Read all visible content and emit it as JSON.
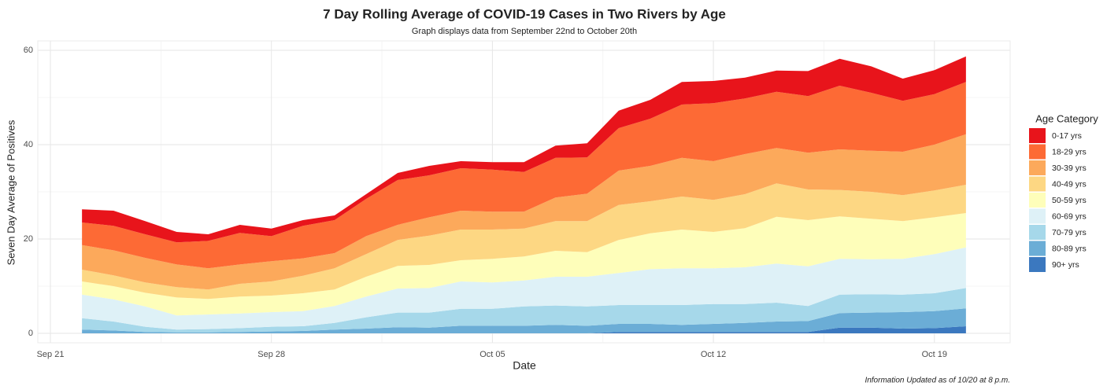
{
  "chart_data": {
    "type": "stacked-area",
    "title": "7 Day Rolling Average of COVID-19 Cases in Two Rivers by Age",
    "subtitle": "Graph displays data from September 22nd to October 20th",
    "x_label": "Date",
    "y_label": "Seven Day Average of Positives",
    "legend_title": "Age Category",
    "note": "Information Updated as of 10/20 at 8 p.m.",
    "x": [
      "Sep 22",
      "Sep 23",
      "Sep 24",
      "Sep 25",
      "Sep 26",
      "Sep 27",
      "Sep 28",
      "Sep 29",
      "Sep 30",
      "Oct 01",
      "Oct 02",
      "Oct 03",
      "Oct 04",
      "Oct 05",
      "Oct 06",
      "Oct 07",
      "Oct 08",
      "Oct 09",
      "Oct 10",
      "Oct 11",
      "Oct 12",
      "Oct 13",
      "Oct 14",
      "Oct 15",
      "Oct 16",
      "Oct 17",
      "Oct 18",
      "Oct 19",
      "Oct 20"
    ],
    "xlim": [
      "Sep 22",
      "Oct 20"
    ],
    "xticks": [
      "Sep 21",
      "Sep 28",
      "Oct 05",
      "Oct 12",
      "Oct 19"
    ],
    "ylim": [
      0,
      60
    ],
    "yticks": [
      0,
      20,
      40,
      60
    ],
    "grid": true,
    "legend_position": "right",
    "series": [
      {
        "name": "90+ yrs",
        "color": "#3b78bf",
        "values": [
          0,
          0,
          0,
          0,
          0,
          0,
          0,
          0,
          0,
          0,
          0,
          0,
          0,
          0,
          0,
          0,
          0,
          0.3,
          0.3,
          0.3,
          0.3,
          0.3,
          0.3,
          0.3,
          1.2,
          1.2,
          1.0,
          1.1,
          1.5
        ]
      },
      {
        "name": "80-89 yrs",
        "color": "#6badd6",
        "values": [
          0.8,
          0.6,
          0.3,
          0.2,
          0.2,
          0.3,
          0.4,
          0.5,
          0.8,
          1.0,
          1.3,
          1.2,
          1.6,
          1.6,
          1.6,
          1.8,
          1.6,
          1.7,
          1.7,
          1.5,
          1.7,
          1.9,
          2.2,
          2.3,
          3.1,
          3.2,
          3.5,
          3.6,
          3.8
        ]
      },
      {
        "name": "70-79 yrs",
        "color": "#a6d8ea",
        "values": [
          2.4,
          1.9,
          1.1,
          0.6,
          0.7,
          0.8,
          1.0,
          1.0,
          1.4,
          2.4,
          3.1,
          3.2,
          3.6,
          3.6,
          4.1,
          4.1,
          4.1,
          4.0,
          4.0,
          4.2,
          4.2,
          4.0,
          4.0,
          3.2,
          3.9,
          3.9,
          3.7,
          3.8,
          4.3
        ]
      },
      {
        "name": "60-69 yrs",
        "color": "#def1f7",
        "values": [
          5.0,
          4.7,
          4.3,
          3.0,
          3.1,
          3.1,
          3.1,
          3.2,
          3.6,
          4.4,
          5.1,
          5.2,
          5.8,
          5.6,
          5.5,
          6.1,
          6.3,
          6.8,
          7.6,
          7.8,
          7.6,
          7.8,
          8.3,
          8.4,
          7.6,
          7.4,
          7.6,
          8.3,
          8.6
        ]
      },
      {
        "name": "50-59 yrs",
        "color": "#fefeba",
        "values": [
          2.8,
          2.8,
          2.9,
          3.8,
          3.3,
          3.6,
          3.5,
          3.8,
          3.5,
          4.2,
          4.8,
          4.9,
          4.5,
          5.0,
          5.1,
          5.5,
          5.2,
          7.0,
          7.6,
          8.2,
          7.7,
          8.3,
          9.9,
          9.8,
          9.0,
          8.6,
          8.0,
          7.8,
          7.3
        ]
      },
      {
        "name": "40-49 yrs",
        "color": "#fdd783",
        "values": [
          2.5,
          2.3,
          2.2,
          2.2,
          2.0,
          2.7,
          3.0,
          3.7,
          4.5,
          4.8,
          5.5,
          6.2,
          6.5,
          6.2,
          5.9,
          6.3,
          6.6,
          7.4,
          6.8,
          7.0,
          6.8,
          7.2,
          7.1,
          6.5,
          5.6,
          5.7,
          5.5,
          5.7,
          6.0
        ]
      },
      {
        "name": "30-39 yrs",
        "color": "#fca95b",
        "values": [
          5.2,
          5.3,
          5.2,
          4.8,
          4.5,
          4.1,
          4.3,
          3.7,
          3.2,
          3.8,
          3.2,
          3.9,
          4.0,
          3.8,
          3.6,
          5.0,
          5.8,
          7.3,
          7.5,
          8.2,
          8.2,
          8.5,
          7.5,
          7.8,
          8.6,
          8.7,
          9.2,
          9.7,
          10.7
        ]
      },
      {
        "name": "18-29 yrs",
        "color": "#fd6a35",
        "values": [
          4.8,
          5.2,
          5.0,
          4.7,
          5.8,
          6.7,
          5.3,
          6.9,
          7.0,
          7.9,
          9.5,
          8.9,
          9.0,
          8.9,
          8.4,
          8.4,
          7.7,
          9.0,
          10.0,
          11.3,
          12.3,
          11.8,
          11.9,
          12.0,
          13.5,
          12.3,
          10.8,
          10.7,
          11.1
        ]
      },
      {
        "name": "0-17 yrs",
        "color": "#e8141b",
        "values": [
          2.8,
          3.2,
          2.8,
          2.2,
          1.4,
          1.7,
          1.6,
          1.2,
          1.0,
          1.0,
          1.5,
          2.0,
          1.5,
          1.6,
          2.1,
          2.6,
          3.0,
          3.7,
          4.0,
          4.8,
          4.7,
          4.4,
          4.5,
          5.3,
          5.7,
          5.6,
          4.7,
          5.1,
          5.4
        ]
      }
    ]
  }
}
